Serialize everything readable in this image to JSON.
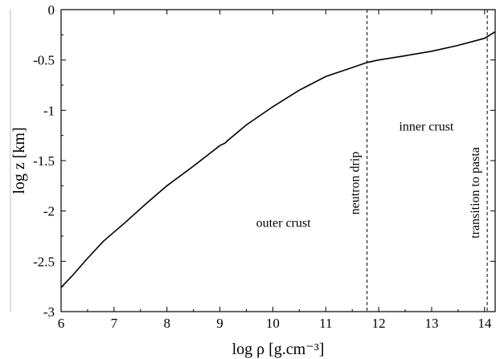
{
  "chart_data": {
    "type": "line",
    "xlabel": "log ρ [g.cm⁻³]",
    "ylabel": "log z [km]",
    "xlim": [
      6,
      14.2
    ],
    "ylim": [
      -3,
      0
    ],
    "xticks": [
      "6",
      "7",
      "8",
      "9",
      "10",
      "11",
      "12",
      "13",
      "14"
    ],
    "yticks": [
      "0",
      "-0.5",
      "-1",
      "-1.5",
      "-2",
      "-2.5",
      "-3"
    ],
    "grid": false,
    "series": [
      {
        "x": [
          6.0,
          6.2,
          6.5,
          6.8,
          7.2,
          7.6,
          8.0,
          8.5,
          9.0,
          9.1,
          9.15,
          9.5,
          10.0,
          10.5,
          11.0,
          11.5,
          11.78,
          12.0,
          12.5,
          13.0,
          13.5,
          14.0,
          14.2
        ],
        "y": [
          -2.76,
          -2.65,
          -2.47,
          -2.3,
          -2.12,
          -1.93,
          -1.75,
          -1.555,
          -1.35,
          -1.325,
          -1.3,
          -1.145,
          -0.965,
          -0.8,
          -0.665,
          -0.575,
          -0.525,
          -0.5,
          -0.458,
          -0.413,
          -0.355,
          -0.285,
          -0.22
        ]
      }
    ],
    "reference_lines": [
      {
        "axis": "x",
        "value": 11.78,
        "style": "dashed",
        "label": "neutron drip"
      },
      {
        "axis": "x",
        "value": 14.05,
        "style": "dashed",
        "label": "transition to pasta"
      }
    ],
    "annotations": [
      {
        "text": "outer crust",
        "x": 10.2,
        "y": -2.16
      },
      {
        "text": "inner crust",
        "x": 12.9,
        "y": -1.2
      }
    ]
  }
}
